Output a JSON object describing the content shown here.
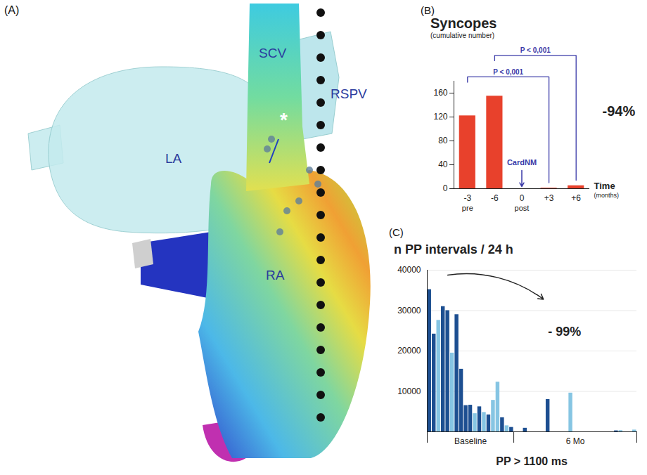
{
  "diagram": {
    "panel": "(A)",
    "labels": [
      "LA",
      "SCV",
      "RSPV",
      "RA",
      "*"
    ]
  },
  "chart_data": [
    {
      "panel": "(B)",
      "type": "bar",
      "title": "Syncopes",
      "subtitle": "(cumulative number)",
      "categories": [
        "-3",
        "-6",
        "0",
        "+3",
        "+6"
      ],
      "x_sublabels": [
        "pre",
        null,
        "post",
        null,
        null
      ],
      "values": [
        122,
        155,
        null,
        1,
        5
      ],
      "color": "#e8412c",
      "xlabel": "Time",
      "xlabel_note": "(months)",
      "ylim": [
        0,
        180
      ],
      "yticks": [
        0,
        40,
        80,
        120,
        160
      ],
      "grid": false,
      "annotations": [
        {
          "text": "CardNM",
          "at": "0"
        }
      ],
      "comparisons": [
        {
          "from": "-6",
          "to": "+6",
          "label": "P < 0,001"
        },
        {
          "from": "-3",
          "to": "+3",
          "label": "P < 0,001"
        }
      ],
      "change_label": "-94%"
    },
    {
      "panel": "(C)",
      "type": "bar",
      "title": "n PP intervals / 24 h",
      "xlabel": "PP > 1100 ms",
      "groups": [
        {
          "label": "Baseline",
          "values": [
            35200,
            24200,
            27600,
            31000,
            30000,
            19500,
            29000,
            15500,
            6500,
            6600,
            4500,
            6200,
            4800,
            4200,
            7800,
            12300,
            3500,
            1500,
            1100
          ],
          "colors": [
            "#1d4f91",
            "#1d4f91",
            "#86c5e3",
            "#1d4f91",
            "#1d4f91",
            "#86c5e3",
            "#1d4f91",
            "#1d4f91",
            "#1d4f91",
            "#1d4f91",
            "#86c5e3",
            "#1d4f91",
            "#86c5e3",
            "#1d4f91",
            "#86c5e3",
            "#86c5e3",
            "#1d4f91",
            "#86c5e3",
            "#1d4f91"
          ]
        },
        {
          "label": "6 Mo",
          "values": [
            0,
            0,
            900,
            0,
            0,
            0,
            0,
            8000,
            0,
            0,
            0,
            0,
            9600,
            0,
            0,
            0,
            0,
            0,
            0,
            0,
            0,
            0,
            250,
            300,
            0,
            0,
            450
          ],
          "colors": [
            "#1d4f91",
            "#1d4f91",
            "#1d4f91",
            "#1d4f91",
            "#1d4f91",
            "#1d4f91",
            "#1d4f91",
            "#1d4f91",
            "#1d4f91",
            "#1d4f91",
            "#1d4f91",
            "#1d4f91",
            "#86c5e3",
            "#1d4f91",
            "#1d4f91",
            "#1d4f91",
            "#1d4f91",
            "#1d4f91",
            "#1d4f91",
            "#1d4f91",
            "#1d4f91",
            "#1d4f91",
            "#1d4f91",
            "#86c5e3",
            "#1d4f91",
            "#1d4f91",
            "#86c5e3"
          ]
        }
      ],
      "ylim": [
        0,
        40000
      ],
      "yticks": [
        10000,
        20000,
        30000,
        40000
      ],
      "grid": true,
      "tick_labels": "y",
      "change_label": "- 99%"
    }
  ]
}
